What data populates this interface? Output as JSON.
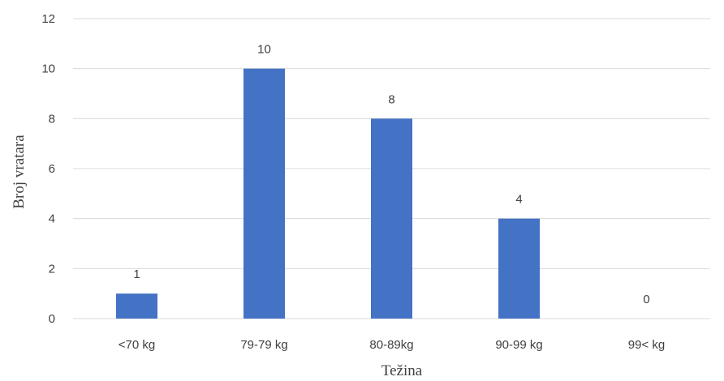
{
  "chart_data": {
    "type": "bar",
    "categories": [
      "<70 kg",
      "79-79 kg",
      "80-89kg",
      "90-99 kg",
      "99< kg"
    ],
    "values": [
      1,
      10,
      8,
      4,
      0
    ],
    "xlabel": "Težina",
    "ylabel": "Broj vratara",
    "ylim": [
      0,
      12
    ],
    "yticks": [
      0,
      2,
      4,
      6,
      8,
      10,
      12
    ],
    "grid": true,
    "data_labels": true,
    "bar_color": "#4472c4"
  }
}
